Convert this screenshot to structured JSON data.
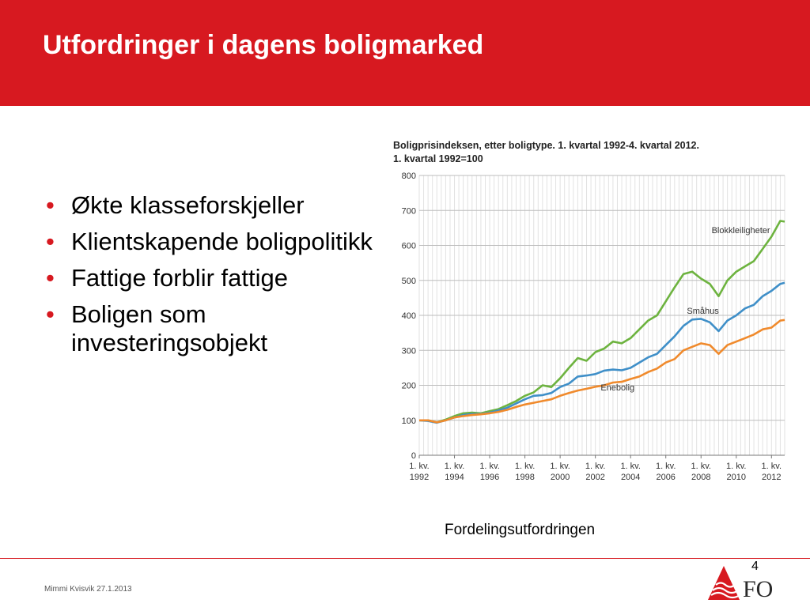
{
  "slide": {
    "title": "Utfordringer i dagens boligmarked",
    "bullets": [
      "Økte klasseforskjeller",
      "Klientskapende boligpolitikk",
      "Fattige forblir fattige",
      "Boligen som investeringsobjekt"
    ],
    "caption": "Fordelingsutfordringen",
    "page_number": "4",
    "footer": "Mimmi Kvisvik 27.1.2013",
    "logo_text": "FO",
    "accent_color": "#d71920"
  },
  "chart_data": {
    "type": "line",
    "title": "Boligprisindeksen, etter boligtype. 1. kvartal 1992-4. kvartal 2012.",
    "subtitle": "1. kvartal 1992=100",
    "ylim": [
      0,
      800
    ],
    "yticks": [
      "0",
      "100",
      "200",
      "300",
      "400",
      "500",
      "600",
      "700",
      "800"
    ],
    "xticks": [
      {
        "line1": "1. kv.",
        "line2": "1992",
        "x": 1992
      },
      {
        "line1": "1. kv.",
        "line2": "1994",
        "x": 1994
      },
      {
        "line1": "1. kv.",
        "line2": "1996",
        "x": 1996
      },
      {
        "line1": "1. kv.",
        "line2": "1998",
        "x": 1998
      },
      {
        "line1": "1. kv.",
        "line2": "2000",
        "x": 2000
      },
      {
        "line1": "1. kv.",
        "line2": "2002",
        "x": 2002
      },
      {
        "line1": "1. kv.",
        "line2": "2004",
        "x": 2004
      },
      {
        "line1": "1. kv.",
        "line2": "2006",
        "x": 2006
      },
      {
        "line1": "1. kv.",
        "line2": "2008",
        "x": 2008
      },
      {
        "line1": "1. kv.",
        "line2": "2010",
        "x": 2010
      },
      {
        "line1": "1. kv.",
        "line2": "2012",
        "x": 2012
      }
    ],
    "xlim": [
      1992,
      2012.75
    ],
    "grid": true,
    "series": [
      {
        "name": "Blokkleiligheter",
        "color": "#6db33f",
        "points": [
          [
            1992,
            100
          ],
          [
            1992.5,
            100
          ],
          [
            1993,
            94
          ],
          [
            1993.5,
            102
          ],
          [
            1994,
            112
          ],
          [
            1994.5,
            120
          ],
          [
            1995,
            122
          ],
          [
            1995.5,
            120
          ],
          [
            1996,
            126
          ],
          [
            1996.5,
            132
          ],
          [
            1997,
            143
          ],
          [
            1997.5,
            155
          ],
          [
            1998,
            170
          ],
          [
            1998.5,
            180
          ],
          [
            1999,
            200
          ],
          [
            1999.5,
            195
          ],
          [
            2000,
            220
          ],
          [
            2000.5,
            250
          ],
          [
            2001,
            278
          ],
          [
            2001.5,
            270
          ],
          [
            2002,
            295
          ],
          [
            2002.5,
            305
          ],
          [
            2003,
            325
          ],
          [
            2003.5,
            320
          ],
          [
            2004,
            335
          ],
          [
            2004.5,
            360
          ],
          [
            2005,
            385
          ],
          [
            2005.5,
            400
          ],
          [
            2006,
            440
          ],
          [
            2006.5,
            480
          ],
          [
            2007,
            518
          ],
          [
            2007.5,
            525
          ],
          [
            2008,
            505
          ],
          [
            2008.5,
            490
          ],
          [
            2009,
            455
          ],
          [
            2009.5,
            500
          ],
          [
            2010,
            525
          ],
          [
            2010.5,
            540
          ],
          [
            2011,
            555
          ],
          [
            2011.5,
            590
          ],
          [
            2012,
            625
          ],
          [
            2012.5,
            670
          ],
          [
            2012.75,
            668
          ]
        ]
      },
      {
        "name": "Småhus",
        "color": "#3f8fc8",
        "points": [
          [
            1992,
            100
          ],
          [
            1992.5,
            98
          ],
          [
            1993,
            93
          ],
          [
            1993.5,
            100
          ],
          [
            1994,
            108
          ],
          [
            1994.5,
            115
          ],
          [
            1995,
            118
          ],
          [
            1995.5,
            118
          ],
          [
            1996,
            122
          ],
          [
            1996.5,
            128
          ],
          [
            1997,
            136
          ],
          [
            1997.5,
            148
          ],
          [
            1998,
            160
          ],
          [
            1998.5,
            170
          ],
          [
            1999,
            172
          ],
          [
            1999.5,
            178
          ],
          [
            2000,
            195
          ],
          [
            2000.5,
            205
          ],
          [
            2001,
            225
          ],
          [
            2001.5,
            228
          ],
          [
            2002,
            232
          ],
          [
            2002.5,
            242
          ],
          [
            2003,
            245
          ],
          [
            2003.5,
            243
          ],
          [
            2004,
            250
          ],
          [
            2004.5,
            265
          ],
          [
            2005,
            280
          ],
          [
            2005.5,
            290
          ],
          [
            2006,
            315
          ],
          [
            2006.5,
            340
          ],
          [
            2007,
            370
          ],
          [
            2007.5,
            388
          ],
          [
            2008,
            390
          ],
          [
            2008.5,
            380
          ],
          [
            2009,
            355
          ],
          [
            2009.5,
            385
          ],
          [
            2010,
            400
          ],
          [
            2010.5,
            420
          ],
          [
            2011,
            430
          ],
          [
            2011.5,
            455
          ],
          [
            2012,
            470
          ],
          [
            2012.5,
            490
          ],
          [
            2012.75,
            493
          ]
        ]
      },
      {
        "name": "Enebolig",
        "color": "#f08a2c",
        "points": [
          [
            1992,
            100
          ],
          [
            1992.5,
            100
          ],
          [
            1993,
            94
          ],
          [
            1993.5,
            100
          ],
          [
            1994,
            108
          ],
          [
            1994.5,
            112
          ],
          [
            1995,
            115
          ],
          [
            1995.5,
            117
          ],
          [
            1996,
            120
          ],
          [
            1996.5,
            124
          ],
          [
            1997,
            130
          ],
          [
            1997.5,
            138
          ],
          [
            1998,
            145
          ],
          [
            1998.5,
            150
          ],
          [
            1999,
            155
          ],
          [
            1999.5,
            160
          ],
          [
            2000,
            170
          ],
          [
            2000.5,
            178
          ],
          [
            2001,
            185
          ],
          [
            2001.5,
            190
          ],
          [
            2002,
            196
          ],
          [
            2002.5,
            200
          ],
          [
            2003,
            208
          ],
          [
            2003.5,
            210
          ],
          [
            2004,
            218
          ],
          [
            2004.5,
            225
          ],
          [
            2005,
            238
          ],
          [
            2005.5,
            248
          ],
          [
            2006,
            265
          ],
          [
            2006.5,
            275
          ],
          [
            2007,
            300
          ],
          [
            2007.5,
            310
          ],
          [
            2008,
            320
          ],
          [
            2008.5,
            315
          ],
          [
            2009,
            290
          ],
          [
            2009.5,
            315
          ],
          [
            2010,
            325
          ],
          [
            2010.5,
            335
          ],
          [
            2011,
            345
          ],
          [
            2011.5,
            360
          ],
          [
            2012,
            365
          ],
          [
            2012.5,
            385
          ],
          [
            2012.75,
            387
          ]
        ]
      }
    ],
    "annotations": [
      {
        "text": "Blokkleiligheter",
        "x": 2008.6,
        "y": 635,
        "series": "Blokkleiligheter"
      },
      {
        "text": "Småhus",
        "x": 2007.2,
        "y": 405,
        "series": "Småhus"
      },
      {
        "text": "Enebolig",
        "x": 2002.3,
        "y": 185,
        "series": "Enebolig"
      }
    ]
  }
}
